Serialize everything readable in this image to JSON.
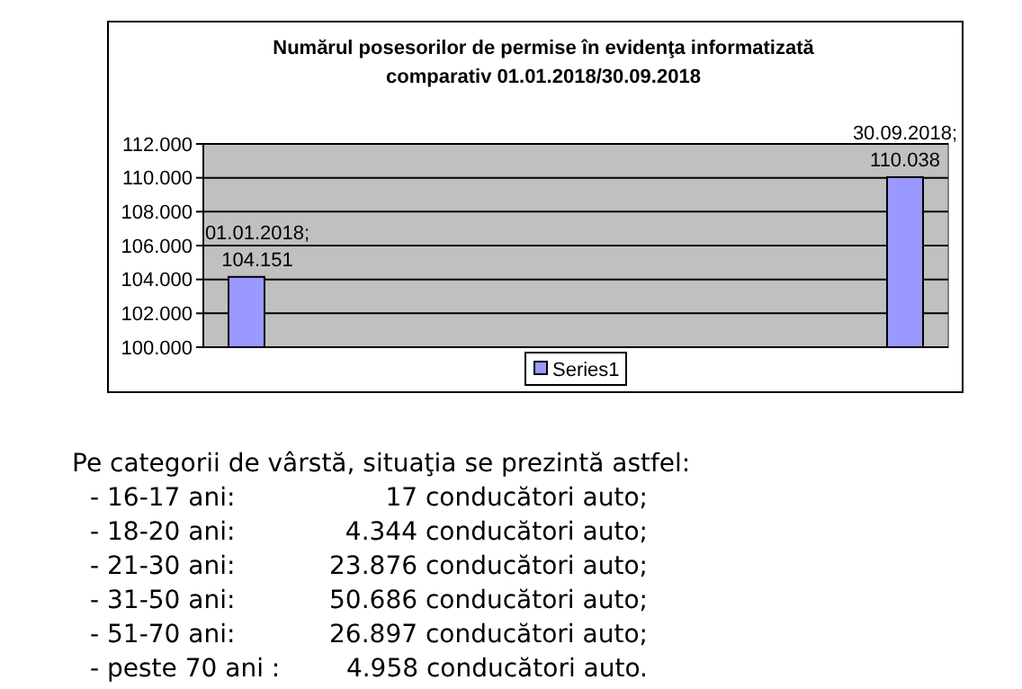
{
  "chart_data": {
    "type": "bar",
    "title": "Numărul posesorilor de permise în evidenţa informatizată comparativ 01.01.2018/30.09.2018",
    "categories": [
      null,
      null
    ],
    "series": [
      {
        "name": "Series1",
        "color": "#9999ff",
        "values": [
          104151,
          110038
        ],
        "value_labels": [
          "01.01.2018; 104.151",
          "30.09.2018; 110.038"
        ]
      }
    ],
    "ylim": [
      100000,
      112000
    ],
    "yticks": [
      {
        "value": 100000,
        "label": "100.000"
      },
      {
        "value": 102000,
        "label": "102.000"
      },
      {
        "value": 104000,
        "label": "104.000"
      },
      {
        "value": 106000,
        "label": "106.000"
      },
      {
        "value": 108000,
        "label": "108.000"
      },
      {
        "value": 110000,
        "label": "110.000"
      },
      {
        "value": 112000,
        "label": "112.000"
      }
    ],
    "tick_labels": "y",
    "grid": "y",
    "legend": "bottom",
    "annotations": [
      "Pe categorii de vârstă, situaţia se prezintă astfel:",
      "- 16-17 ani:",
      "17 conducători auto;",
      "- 18-20 ani:",
      "4.344 conducători auto;",
      "- 21-30 ani:",
      "23.876 conducători auto;",
      "- 31-50 ani:",
      "50.686 conducători auto;",
      "- 51-70 ani:",
      "26.897 conducători auto;",
      "- peste 70 ani :",
      "4.958 conducători auto."
    ]
  }
}
